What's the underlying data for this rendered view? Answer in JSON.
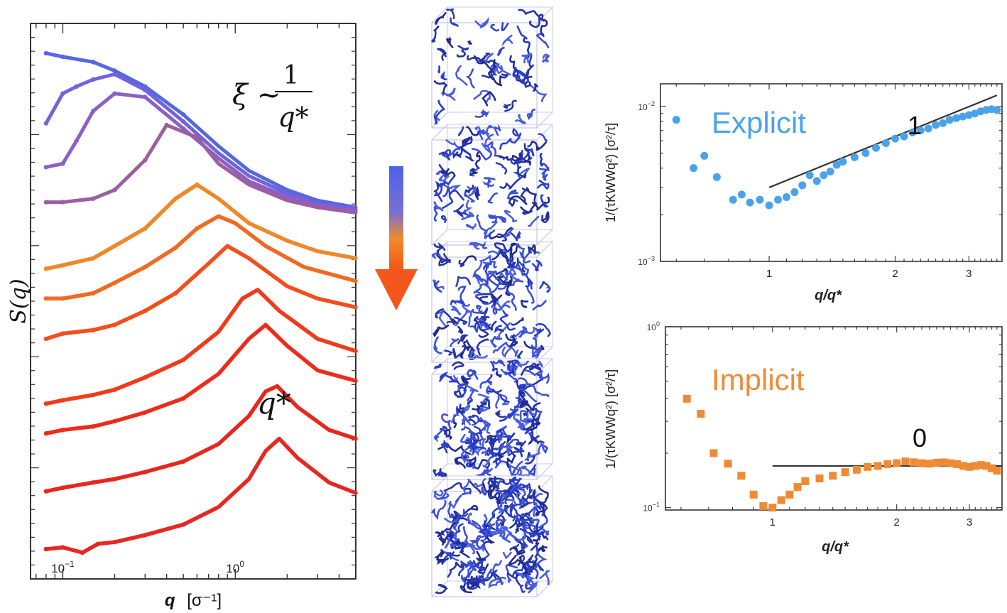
{
  "chart_data": [
    {
      "type": "line",
      "xlabel_var": "q",
      "xlabel_unit": "[σ⁻¹]",
      "ylabel": "S(q)",
      "xscale": "log",
      "yscale": "log",
      "xlim": [
        0.065,
        5.0
      ],
      "x_ticks": [
        {
          "value": 0.1,
          "label_base": "10",
          "label_exp": "−1"
        },
        {
          "value": 1.0,
          "label_base": "10",
          "label_exp": "0"
        }
      ],
      "annotations": [
        {
          "id": "xi",
          "text_left": "ξ ~",
          "numerator": "1",
          "denominator": "q*"
        },
        {
          "id": "qstar",
          "text": "q*"
        }
      ],
      "series": [
        {
          "color": "#5566e6",
          "values": [
            [
              0.08,
              0.95
            ],
            [
              0.1,
              0.93
            ],
            [
              0.15,
              0.9
            ],
            [
              0.2,
              0.85
            ],
            [
              0.3,
              0.76
            ],
            [
              0.5,
              0.6
            ],
            [
              0.8,
              0.42
            ],
            [
              1.2,
              0.28
            ],
            [
              2.0,
              0.17
            ],
            [
              3.0,
              0.11
            ],
            [
              5.0,
              0.07
            ]
          ]
        },
        {
          "color": "#7363d9",
          "values": [
            [
              0.08,
              0.55
            ],
            [
              0.1,
              0.72
            ],
            [
              0.12,
              0.76
            ],
            [
              0.15,
              0.8
            ],
            [
              0.2,
              0.83
            ],
            [
              0.3,
              0.74
            ],
            [
              0.5,
              0.56
            ],
            [
              0.8,
              0.38
            ],
            [
              1.2,
              0.25
            ],
            [
              2.0,
              0.15
            ],
            [
              3.0,
              0.09
            ],
            [
              5.0,
              0.06
            ]
          ]
        },
        {
          "color": "#8c5fc4",
          "values": [
            [
              0.08,
              0.3
            ],
            [
              0.1,
              0.32
            ],
            [
              0.12,
              0.45
            ],
            [
              0.15,
              0.62
            ],
            [
              0.2,
              0.72
            ],
            [
              0.3,
              0.7
            ],
            [
              0.5,
              0.52
            ],
            [
              0.8,
              0.35
            ],
            [
              1.2,
              0.22
            ],
            [
              2.0,
              0.13
            ],
            [
              3.0,
              0.08
            ],
            [
              5.0,
              0.05
            ]
          ]
        },
        {
          "color": "#9b5ea0",
          "values": [
            [
              0.08,
              0.1
            ],
            [
              0.1,
              0.1
            ],
            [
              0.15,
              0.12
            ],
            [
              0.2,
              0.17
            ],
            [
              0.3,
              0.34
            ],
            [
              0.4,
              0.54
            ],
            [
              0.6,
              0.47
            ],
            [
              0.8,
              0.32
            ],
            [
              1.2,
              0.2
            ],
            [
              2.0,
              0.11
            ],
            [
              3.0,
              0.07
            ],
            [
              5.0,
              0.04
            ]
          ]
        },
        {
          "color": "#f0882a",
          "values": [
            [
              0.08,
              -0.28
            ],
            [
              0.1,
              -0.26
            ],
            [
              0.15,
              -0.22
            ],
            [
              0.2,
              -0.15
            ],
            [
              0.3,
              -0.05
            ],
            [
              0.45,
              0.12
            ],
            [
              0.6,
              0.2
            ],
            [
              0.8,
              0.12
            ],
            [
              1.2,
              -0.02
            ],
            [
              2.0,
              -0.12
            ],
            [
              3.0,
              -0.18
            ],
            [
              5.0,
              -0.22
            ]
          ]
        },
        {
          "color": "#f26a22",
          "values": [
            [
              0.08,
              -0.45
            ],
            [
              0.1,
              -0.45
            ],
            [
              0.15,
              -0.42
            ],
            [
              0.2,
              -0.36
            ],
            [
              0.3,
              -0.27
            ],
            [
              0.45,
              -0.16
            ],
            [
              0.6,
              -0.05
            ],
            [
              0.8,
              0.02
            ],
            [
              1.0,
              -0.02
            ],
            [
              1.5,
              -0.15
            ],
            [
              2.5,
              -0.27
            ],
            [
              5.0,
              -0.35
            ]
          ]
        },
        {
          "color": "#f44e1d",
          "values": [
            [
              0.08,
              -0.68
            ],
            [
              0.1,
              -0.65
            ],
            [
              0.15,
              -0.63
            ],
            [
              0.2,
              -0.6
            ],
            [
              0.3,
              -0.52
            ],
            [
              0.45,
              -0.42
            ],
            [
              0.7,
              -0.25
            ],
            [
              0.9,
              -0.15
            ],
            [
              1.2,
              -0.22
            ],
            [
              2.0,
              -0.38
            ],
            [
              3.0,
              -0.45
            ],
            [
              5.0,
              -0.5
            ]
          ]
        },
        {
          "color": "#f23a1b",
          "values": [
            [
              0.08,
              -1.05
            ],
            [
              0.1,
              -1.03
            ],
            [
              0.15,
              -1.0
            ],
            [
              0.2,
              -0.97
            ],
            [
              0.3,
              -0.9
            ],
            [
              0.5,
              -0.8
            ],
            [
              0.8,
              -0.64
            ],
            [
              1.1,
              -0.45
            ],
            [
              1.35,
              -0.4
            ],
            [
              1.8,
              -0.52
            ],
            [
              3.0,
              -0.68
            ],
            [
              5.0,
              -0.75
            ]
          ]
        },
        {
          "color": "#ee2b1b",
          "values": [
            [
              0.08,
              -1.22
            ],
            [
              0.1,
              -1.2
            ],
            [
              0.15,
              -1.18
            ],
            [
              0.2,
              -1.15
            ],
            [
              0.3,
              -1.1
            ],
            [
              0.5,
              -1.02
            ],
            [
              0.8,
              -0.88
            ],
            [
              1.2,
              -0.68
            ],
            [
              1.5,
              -0.6
            ],
            [
              2.0,
              -0.72
            ],
            [
              3.0,
              -0.86
            ],
            [
              5.0,
              -0.92
            ]
          ]
        },
        {
          "color": "#e8261e",
          "values": [
            [
              0.08,
              -1.55
            ],
            [
              0.1,
              -1.53
            ],
            [
              0.15,
              -1.5
            ],
            [
              0.2,
              -1.48
            ],
            [
              0.3,
              -1.44
            ],
            [
              0.5,
              -1.38
            ],
            [
              0.8,
              -1.28
            ],
            [
              1.2,
              -1.12
            ],
            [
              1.5,
              -0.98
            ],
            [
              1.75,
              -0.95
            ],
            [
              2.3,
              -1.07
            ],
            [
              3.5,
              -1.2
            ],
            [
              5.0,
              -1.25
            ]
          ]
        },
        {
          "color": "#e52822",
          "values": [
            [
              0.08,
              -1.88
            ],
            [
              0.1,
              -1.87
            ],
            [
              0.13,
              -1.9
            ],
            [
              0.16,
              -1.85
            ],
            [
              0.2,
              -1.84
            ],
            [
              0.3,
              -1.8
            ],
            [
              0.5,
              -1.74
            ],
            [
              0.8,
              -1.64
            ],
            [
              1.2,
              -1.48
            ],
            [
              1.5,
              -1.32
            ],
            [
              1.8,
              -1.25
            ],
            [
              2.3,
              -1.36
            ],
            [
              3.5,
              -1.5
            ],
            [
              5.0,
              -1.56
            ]
          ]
        }
      ]
    },
    {
      "type": "scatter",
      "legend_label": "Explicit",
      "legend_color": "#4aa3ea",
      "slope_label": "1",
      "xlabel": "q/q*",
      "ylabel": "1/(τKWWq²) [σ²/τ]",
      "xscale": "log",
      "yscale": "log",
      "xlim": [
        0.55,
        3.6
      ],
      "ylim": [
        0.001,
        0.014
      ],
      "x_ticks": [
        {
          "value": 1,
          "label": "1"
        },
        {
          "value": 2,
          "label": "2"
        },
        {
          "value": 3,
          "label": "3"
        }
      ],
      "y_ticks": [
        {
          "value": 0.01,
          "label_base": "10",
          "label_exp": "−2"
        },
        {
          "value": 0.001,
          "label_base": "10",
          "label_exp": "−3"
        }
      ],
      "fit_line": [
        [
          1.0,
          0.003
        ],
        [
          3.5,
          0.0118
        ]
      ],
      "points": [
        [
          0.6,
          0.0082
        ],
        [
          0.66,
          0.004
        ],
        [
          0.7,
          0.0048
        ],
        [
          0.75,
          0.0035
        ],
        [
          0.82,
          0.0025
        ],
        [
          0.86,
          0.0027
        ],
        [
          0.9,
          0.0024
        ],
        [
          0.95,
          0.0025
        ],
        [
          1.0,
          0.0023
        ],
        [
          1.05,
          0.0025
        ],
        [
          1.1,
          0.0026
        ],
        [
          1.15,
          0.0028
        ],
        [
          1.2,
          0.0031
        ],
        [
          1.25,
          0.0036
        ],
        [
          1.3,
          0.0033
        ],
        [
          1.35,
          0.0036
        ],
        [
          1.4,
          0.0038
        ],
        [
          1.45,
          0.0042
        ],
        [
          1.5,
          0.0044
        ],
        [
          1.6,
          0.0047
        ],
        [
          1.7,
          0.005
        ],
        [
          1.8,
          0.0054
        ],
        [
          1.9,
          0.0058
        ],
        [
          2.0,
          0.0062
        ],
        [
          2.1,
          0.0064
        ],
        [
          2.2,
          0.0068
        ],
        [
          2.3,
          0.007
        ],
        [
          2.4,
          0.0072
        ],
        [
          2.5,
          0.0076
        ],
        [
          2.6,
          0.0078
        ],
        [
          2.7,
          0.0082
        ],
        [
          2.8,
          0.0084
        ],
        [
          2.9,
          0.0086
        ],
        [
          3.0,
          0.0088
        ],
        [
          3.1,
          0.009
        ],
        [
          3.2,
          0.0093
        ],
        [
          3.3,
          0.0095
        ],
        [
          3.4,
          0.0096
        ],
        [
          3.5,
          0.0095
        ]
      ]
    },
    {
      "type": "scatter",
      "legend_label": "Implicit",
      "legend_color": "#ef8a35",
      "slope_label": "0",
      "xlabel": "q/q*",
      "ylabel": "1/(τKWWq²) [σ²/τ]",
      "xscale": "log",
      "yscale": "log",
      "xlim": [
        0.55,
        3.6
      ],
      "ylim": [
        0.097,
        1.0
      ],
      "x_ticks": [
        {
          "value": 1,
          "label": "1"
        },
        {
          "value": 2,
          "label": "2"
        },
        {
          "value": 3,
          "label": "3"
        }
      ],
      "y_ticks": [
        {
          "value": 1.0,
          "label_base": "10",
          "label_exp": "0"
        },
        {
          "value": 0.1,
          "label_base": "10",
          "label_exp": "−1"
        }
      ],
      "fit_line": [
        [
          1.0,
          0.17
        ],
        [
          3.6,
          0.17
        ]
      ],
      "points": [
        [
          0.62,
          0.4
        ],
        [
          0.67,
          0.33
        ],
        [
          0.72,
          0.2
        ],
        [
          0.78,
          0.175
        ],
        [
          0.84,
          0.15
        ],
        [
          0.9,
          0.118
        ],
        [
          0.95,
          0.102
        ],
        [
          1.0,
          0.1
        ],
        [
          1.05,
          0.11
        ],
        [
          1.1,
          0.118
        ],
        [
          1.15,
          0.13
        ],
        [
          1.2,
          0.14
        ],
        [
          1.3,
          0.145
        ],
        [
          1.4,
          0.15
        ],
        [
          1.5,
          0.157
        ],
        [
          1.6,
          0.162
        ],
        [
          1.7,
          0.168
        ],
        [
          1.8,
          0.17
        ],
        [
          1.9,
          0.174
        ],
        [
          2.0,
          0.176
        ],
        [
          2.1,
          0.18
        ],
        [
          2.2,
          0.178
        ],
        [
          2.3,
          0.176
        ],
        [
          2.4,
          0.175
        ],
        [
          2.5,
          0.177
        ],
        [
          2.6,
          0.178
        ],
        [
          2.7,
          0.176
        ],
        [
          2.8,
          0.174
        ],
        [
          2.9,
          0.17
        ],
        [
          3.0,
          0.168
        ],
        [
          3.1,
          0.17
        ],
        [
          3.2,
          0.172
        ],
        [
          3.3,
          0.17
        ],
        [
          3.4,
          0.165
        ],
        [
          3.5,
          0.16
        ]
      ]
    }
  ]
}
